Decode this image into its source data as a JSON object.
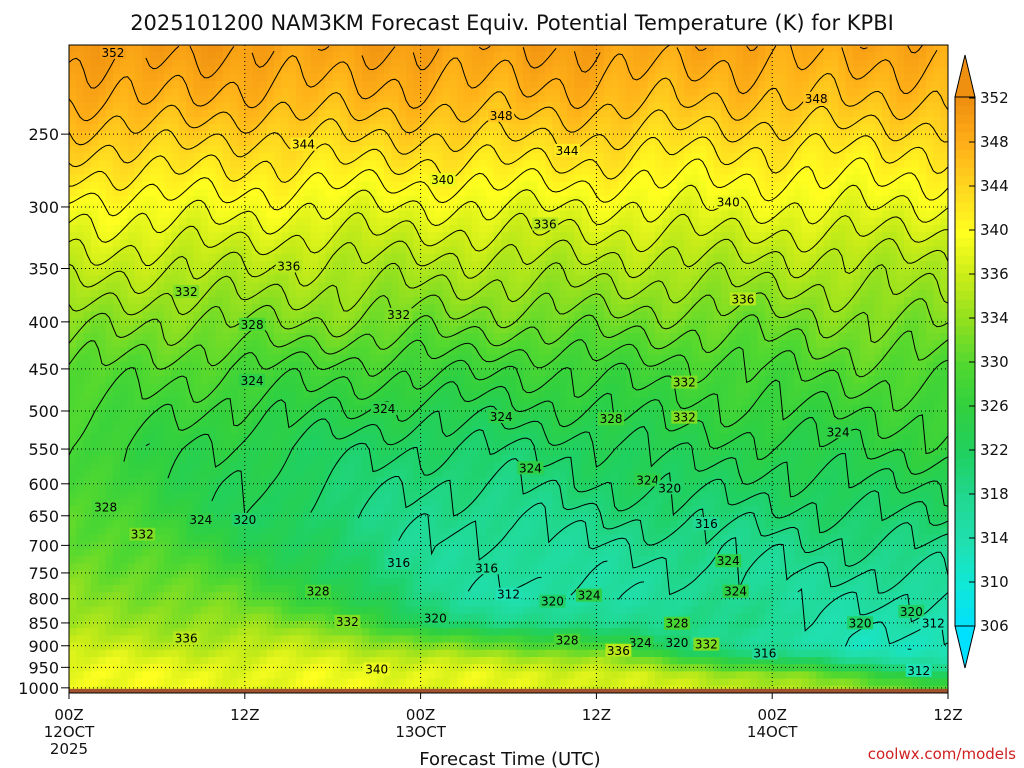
{
  "chart_data": {
    "type": "heatmap",
    "title": "2025101200 NAM3KM Forecast Equiv. Potential Temperature (K) for KPBI",
    "xlabel": "Forecast Time (UTC)",
    "ylabel": "",
    "x_range_hours": [
      0,
      60
    ],
    "x_ticks": [
      {
        "hour": 0,
        "label": "00Z",
        "date": "12OCT",
        "year": "2025"
      },
      {
        "hour": 12,
        "label": "12Z",
        "date": "",
        "year": ""
      },
      {
        "hour": 24,
        "label": "00Z",
        "date": "13OCT",
        "year": ""
      },
      {
        "hour": 36,
        "label": "12Z",
        "date": "",
        "year": ""
      },
      {
        "hour": 48,
        "label": "00Z",
        "date": "14OCT",
        "year": ""
      },
      {
        "hour": 60,
        "label": "12Z",
        "date": "",
        "year": ""
      }
    ],
    "y_ticks": [
      250,
      300,
      350,
      400,
      450,
      500,
      550,
      600,
      650,
      700,
      750,
      800,
      850,
      900,
      950,
      1000
    ],
    "y_range_hpa": [
      200,
      1013
    ],
    "ground_hpa": 1013,
    "colorbar": {
      "levels": [
        306,
        310,
        314,
        318,
        322,
        326,
        330,
        334,
        336,
        340,
        344,
        348,
        352
      ],
      "min": 304,
      "max": 354,
      "colors": [
        "#00e0ff",
        "#10e8d8",
        "#20e0b0",
        "#20d890",
        "#20d060",
        "#30d040",
        "#50d830",
        "#90e020",
        "#c8ec18",
        "#ffff20",
        "#ffd820",
        "#ffb018",
        "#f09010"
      ]
    },
    "profile": {
      "pressures": [
        200,
        230,
        260,
        300,
        340,
        400,
        450,
        500,
        550,
        600,
        650,
        700,
        750,
        800,
        850,
        880,
        910,
        940,
        970,
        1013
      ],
      "series": [
        {
          "hour": 0,
          "values": [
            353,
            350,
            346,
            341,
            338,
            333,
            330,
            328,
            327,
            328,
            330,
            331,
            332,
            333,
            334,
            336,
            338,
            340,
            341,
            341
          ]
        },
        {
          "hour": 6,
          "values": [
            353,
            350,
            346,
            341,
            337,
            332,
            329,
            327,
            325,
            325,
            326,
            328,
            330,
            332,
            334,
            335,
            337,
            339,
            340,
            340
          ]
        },
        {
          "hour": 12,
          "values": [
            352,
            349,
            345,
            341,
            337,
            332,
            328,
            325,
            323,
            322,
            322,
            324,
            327,
            330,
            333,
            335,
            337,
            339,
            340,
            340
          ]
        },
        {
          "hour": 18,
          "values": [
            352,
            349,
            345,
            340,
            336,
            332,
            327,
            324,
            321,
            320,
            319,
            320,
            321,
            324,
            331,
            335,
            337,
            339,
            340,
            340
          ]
        },
        {
          "hour": 24,
          "values": [
            352,
            349,
            345,
            340,
            336,
            331,
            327,
            323,
            320,
            318,
            317,
            316,
            317,
            318,
            320,
            328,
            334,
            338,
            340,
            340
          ]
        },
        {
          "hour": 30,
          "values": [
            352,
            349,
            345,
            340,
            336,
            331,
            326,
            323,
            320,
            318,
            316,
            315,
            314,
            313,
            318,
            326,
            332,
            337,
            339,
            339
          ]
        },
        {
          "hour": 36,
          "values": [
            352,
            349,
            345,
            340,
            336,
            331,
            327,
            324,
            321,
            320,
            318,
            316,
            315,
            314,
            316,
            322,
            330,
            336,
            339,
            339
          ]
        },
        {
          "hour": 42,
          "values": [
            351,
            348,
            344,
            340,
            336,
            331,
            327,
            325,
            323,
            321,
            319,
            317,
            316,
            316,
            318,
            318,
            320,
            330,
            336,
            338
          ]
        },
        {
          "hour": 48,
          "values": [
            351,
            348,
            344,
            340,
            336,
            331,
            328,
            326,
            323,
            321,
            319,
            317,
            316,
            316,
            316,
            314,
            316,
            324,
            334,
            337
          ]
        },
        {
          "hour": 54,
          "values": [
            351,
            348,
            344,
            340,
            336,
            332,
            329,
            326,
            324,
            322,
            320,
            318,
            316,
            314,
            313,
            312,
            312,
            318,
            328,
            334
          ]
        },
        {
          "hour": 60,
          "values": [
            351,
            348,
            344,
            340,
            336,
            332,
            329,
            327,
            325,
            322,
            320,
            318,
            316,
            314,
            312,
            311,
            310,
            314,
            322,
            330
          ]
        }
      ]
    },
    "contour_labels": [
      {
        "value": "352",
        "hour": 3.0,
        "hpa": 205
      },
      {
        "value": "348",
        "hour": 29.5,
        "hpa": 240
      },
      {
        "value": "348",
        "hour": 51.0,
        "hpa": 230
      },
      {
        "value": "344",
        "hour": 16.0,
        "hpa": 258
      },
      {
        "value": "344",
        "hour": 34.0,
        "hpa": 262
      },
      {
        "value": "340",
        "hour": 25.5,
        "hpa": 282
      },
      {
        "value": "340",
        "hour": 45.0,
        "hpa": 298
      },
      {
        "value": "336",
        "hour": 32.5,
        "hpa": 315
      },
      {
        "value": "336",
        "hour": 15.0,
        "hpa": 350
      },
      {
        "value": "336",
        "hour": 46.0,
        "hpa": 380
      },
      {
        "value": "332",
        "hour": 8.0,
        "hpa": 373
      },
      {
        "value": "332",
        "hour": 22.5,
        "hpa": 395
      },
      {
        "value": "332",
        "hour": 42.0,
        "hpa": 468
      },
      {
        "value": "332",
        "hour": 42.0,
        "hpa": 511
      },
      {
        "value": "328",
        "hour": 12.5,
        "hpa": 405
      },
      {
        "value": "328",
        "hour": 37.0,
        "hpa": 513
      },
      {
        "value": "324",
        "hour": 12.5,
        "hpa": 466
      },
      {
        "value": "324",
        "hour": 21.5,
        "hpa": 500
      },
      {
        "value": "324",
        "hour": 29.5,
        "hpa": 510
      },
      {
        "value": "324",
        "hour": 52.5,
        "hpa": 530
      },
      {
        "value": "324",
        "hour": 31.5,
        "hpa": 580
      },
      {
        "value": "324",
        "hour": 39.5,
        "hpa": 598
      },
      {
        "value": "320",
        "hour": 12.0,
        "hpa": 660
      },
      {
        "value": "320",
        "hour": 41.0,
        "hpa": 610
      },
      {
        "value": "316",
        "hour": 43.5,
        "hpa": 667
      },
      {
        "value": "316",
        "hour": 22.5,
        "hpa": 735
      },
      {
        "value": "316",
        "hour": 28.5,
        "hpa": 745
      },
      {
        "value": "328",
        "hour": 2.5,
        "hpa": 640
      },
      {
        "value": "332",
        "hour": 5.0,
        "hpa": 685
      },
      {
        "value": "324",
        "hour": 9.0,
        "hpa": 660
      },
      {
        "value": "328",
        "hour": 17.0,
        "hpa": 790
      },
      {
        "value": "332",
        "hour": 19.0,
        "hpa": 852
      },
      {
        "value": "320",
        "hour": 25.0,
        "hpa": 845
      },
      {
        "value": "312",
        "hour": 30.0,
        "hpa": 796
      },
      {
        "value": "320",
        "hour": 33.0,
        "hpa": 810
      },
      {
        "value": "324",
        "hour": 35.5,
        "hpa": 798
      },
      {
        "value": "328",
        "hour": 41.5,
        "hpa": 856
      },
      {
        "value": "324",
        "hour": 45.0,
        "hpa": 732
      },
      {
        "value": "324",
        "hour": 45.5,
        "hpa": 790
      },
      {
        "value": "328",
        "hour": 34.0,
        "hpa": 893
      },
      {
        "value": "324",
        "hour": 39.0,
        "hpa": 898
      },
      {
        "value": "320",
        "hour": 41.5,
        "hpa": 898
      },
      {
        "value": "332",
        "hour": 43.5,
        "hpa": 902
      },
      {
        "value": "336",
        "hour": 37.5,
        "hpa": 916
      },
      {
        "value": "316",
        "hour": 47.5,
        "hpa": 922
      },
      {
        "value": "340",
        "hour": 21.0,
        "hpa": 960
      },
      {
        "value": "336",
        "hour": 8.0,
        "hpa": 888
      },
      {
        "value": "320",
        "hour": 54.0,
        "hpa": 855
      },
      {
        "value": "320",
        "hour": 57.5,
        "hpa": 831
      },
      {
        "value": "312",
        "hour": 59.0,
        "hpa": 856
      },
      {
        "value": "312",
        "hour": 58.0,
        "hpa": 963
      }
    ]
  },
  "credit": "coolwx.com/models"
}
